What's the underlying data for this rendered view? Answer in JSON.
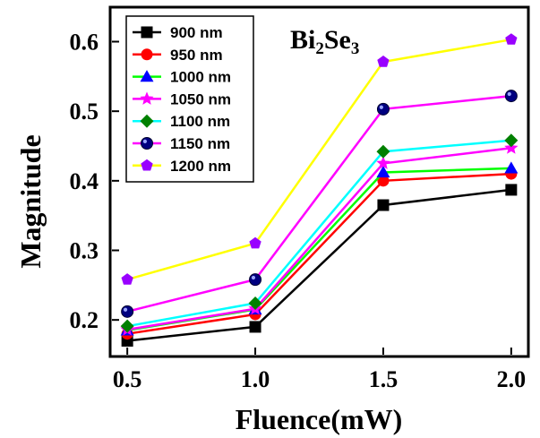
{
  "chart_data": {
    "type": "line",
    "title": "",
    "xlabel": "Fluence(mW)",
    "ylabel": "Magnitude",
    "xlim": [
      0.44,
      2.06
    ],
    "ylim": [
      0.15,
      0.647
    ],
    "x": [
      0.5,
      1.0,
      1.5,
      2.0
    ],
    "xticks": [
      "0.5",
      "1.0",
      "1.5",
      "2.0"
    ],
    "yticks": [
      "0.2",
      "0.3",
      "0.4",
      "0.5",
      "0.6"
    ],
    "annotation": {
      "main": "Bi",
      "sub1": "2",
      "mid": "Se",
      "sub2": "3"
    },
    "legend_position": "top-left",
    "series": [
      {
        "name": "900 nm",
        "color": "#000000",
        "marker": "square",
        "values": [
          0.17,
          0.19,
          0.365,
          0.387
        ]
      },
      {
        "name": "950 nm",
        "color": "#ff0000",
        "marker": "circle",
        "values": [
          0.18,
          0.208,
          0.4,
          0.41
        ]
      },
      {
        "name": "1000 nm",
        "color": "#0000ff",
        "marker": "triangle",
        "values": [
          0.185,
          0.215,
          0.412,
          0.418
        ]
      },
      {
        "name": "1050 nm",
        "color": "#ff00ff",
        "marker": "star",
        "values": [
          0.186,
          0.216,
          0.425,
          0.447
        ]
      },
      {
        "name": "1100 nm",
        "color": "#008000",
        "marker": "diamond",
        "values": [
          0.191,
          0.224,
          0.442,
          0.458
        ]
      },
      {
        "name": "1150 nm",
        "color": "#000080",
        "marker": "ball",
        "values": [
          0.212,
          0.258,
          0.503,
          0.522
        ]
      },
      {
        "name": "1200 nm",
        "color": "#9900ff",
        "marker": "pentagon",
        "values": [
          0.258,
          0.31,
          0.571,
          0.603
        ]
      }
    ],
    "line_colors": [
      "#000000",
      "#ff0000",
      "#00ff00",
      "#ff00ff",
      "#00ffff",
      "#ff00ff",
      "#ffff00"
    ]
  }
}
